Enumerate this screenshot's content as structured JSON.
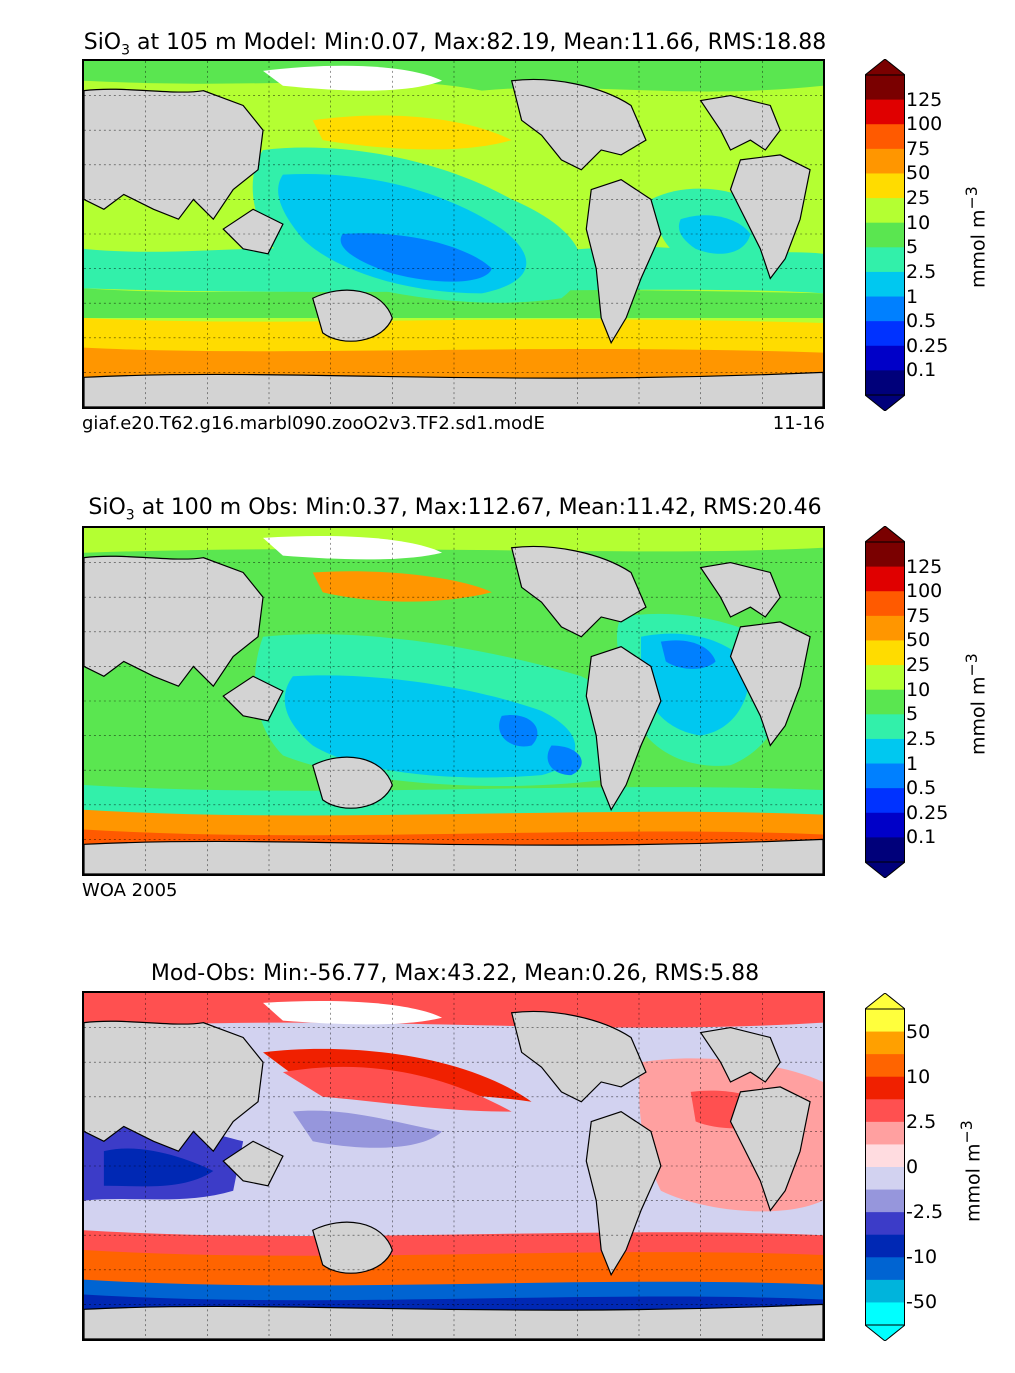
{
  "panels": [
    {
      "title_prefix": "SiO",
      "title_sub": "3",
      "title_suffix": " at 105 m Model: Min:0.07, Max:82.19, Mean:11.66, RMS:18.88",
      "footer_left": "giaf.e20.T62.g16.marbl090.zooO2v3.TF2.sd1.modE",
      "footer_right": "11-16",
      "colorbar": {
        "labels": [
          "125",
          "100",
          "75",
          "50",
          "25",
          "10",
          "5",
          "2.5",
          "1",
          "0.5",
          "0.25",
          "0.1"
        ],
        "colors": [
          "#7a0000",
          "#e00000",
          "#ff5a00",
          "#ff9600",
          "#ffdc00",
          "#b4ff32",
          "#5ae650",
          "#32f0aa",
          "#00c8f0",
          "#0080ff",
          "#0032ff",
          "#0000c8",
          "#00007a"
        ],
        "unit": "mmol m",
        "unit_sup": "−3"
      }
    },
    {
      "title_prefix": "SiO",
      "title_sub": "3",
      "title_suffix": " at 100 m Obs: Min:0.37, Max:112.67, Mean:11.42, RMS:20.46",
      "footer_left": "WOA 2005",
      "footer_right": "",
      "colorbar": {
        "labels": [
          "125",
          "100",
          "75",
          "50",
          "25",
          "10",
          "5",
          "2.5",
          "1",
          "0.5",
          "0.25",
          "0.1"
        ],
        "colors": [
          "#7a0000",
          "#e00000",
          "#ff5a00",
          "#ff9600",
          "#ffdc00",
          "#b4ff32",
          "#5ae650",
          "#32f0aa",
          "#00c8f0",
          "#0080ff",
          "#0032ff",
          "#0000c8",
          "#00007a"
        ],
        "unit": "mmol m",
        "unit_sup": "−3"
      }
    },
    {
      "title_prefix": "Mod-Obs: Min:-56.77, Max:43.22, Mean:0.26, RMS:5.88",
      "title_sub": "",
      "title_suffix": "",
      "footer_left": "",
      "footer_right": "",
      "colorbar": {
        "labels": [
          "50",
          "",
          "10",
          "",
          "2.5",
          "",
          "0",
          "",
          "-2.5",
          "",
          "-10",
          "",
          "-50"
        ],
        "colors": [
          "#ffff3c",
          "#ffa000",
          "#ff6400",
          "#f02000",
          "#ff5050",
          "#ffa0a0",
          "#ffdce0",
          "#d2d2f0",
          "#9696dc",
          "#3c3cc8",
          "#0028b4",
          "#0064d2",
          "#00b4dc",
          "#00ffff"
        ],
        "unit": "mmol m",
        "unit_sup": "−3"
      }
    }
  ],
  "colors": {
    "land": "#d3d3d3",
    "ice_white": "#ffffff"
  }
}
